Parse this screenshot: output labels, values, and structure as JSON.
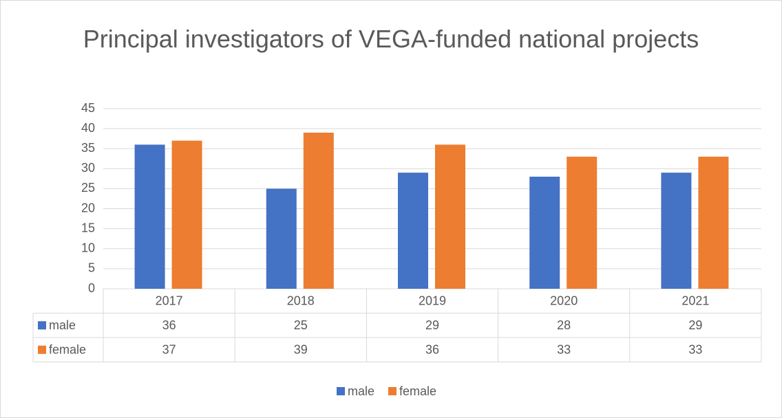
{
  "chart_data": {
    "type": "bar",
    "title": "Principal investigators of VEGA-funded national projects",
    "categories": [
      "2017",
      "2018",
      "2019",
      "2020",
      "2021"
    ],
    "series": [
      {
        "name": "male",
        "color": "#4472c4",
        "values": [
          36,
          25,
          29,
          28,
          29
        ]
      },
      {
        "name": "female",
        "color": "#ed7d31",
        "values": [
          37,
          39,
          36,
          33,
          33
        ]
      }
    ],
    "ylim": [
      0,
      45
    ],
    "yticks": [
      0,
      5,
      10,
      15,
      20,
      25,
      30,
      35,
      40,
      45
    ],
    "grid": true,
    "data_table": true,
    "legend": "bottom"
  }
}
